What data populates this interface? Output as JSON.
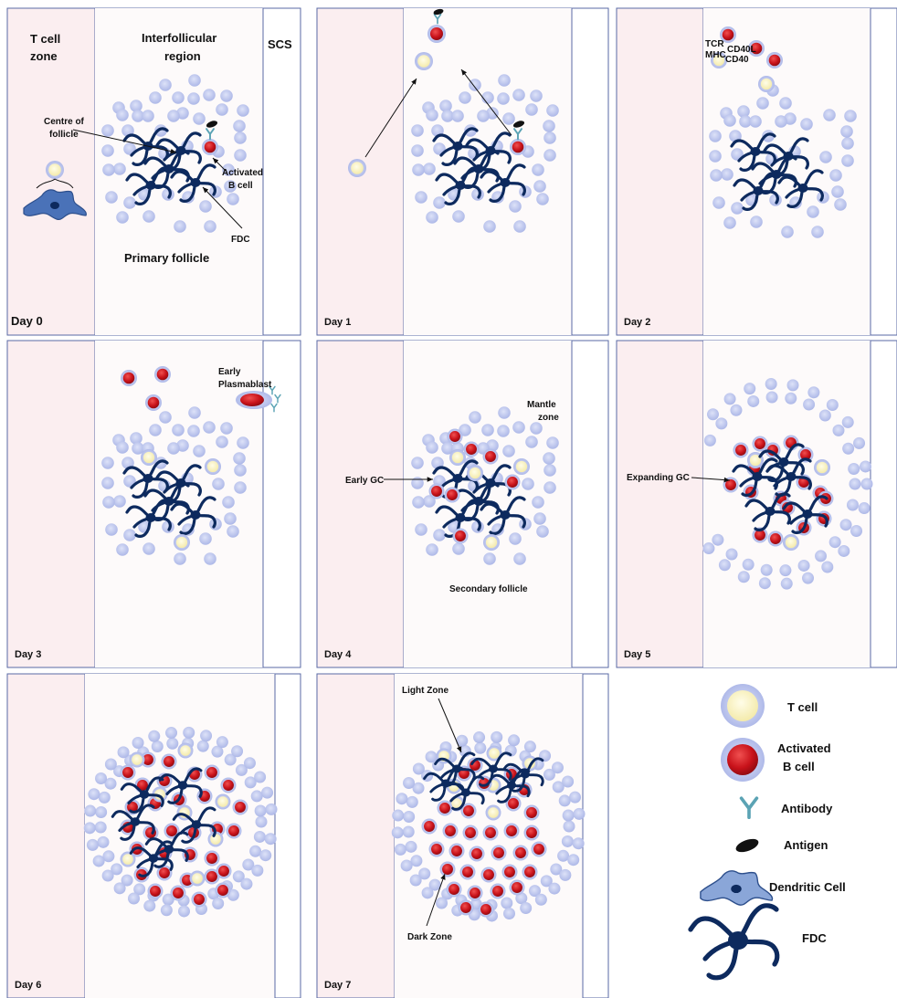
{
  "panels": [
    {
      "day": "Day 0",
      "key": "d0"
    },
    {
      "day": "Day 1",
      "key": "d1"
    },
    {
      "day": "Day 2",
      "key": "d2"
    },
    {
      "day": "Day 3",
      "key": "d3"
    },
    {
      "day": "Day 4",
      "key": "d4"
    },
    {
      "day": "Day 5",
      "key": "d5"
    },
    {
      "day": "Day 6",
      "key": "d6"
    },
    {
      "day": "Day 7",
      "key": "d7"
    }
  ],
  "labels": {
    "t_cell_zone_1": "T cell",
    "t_cell_zone_2": "zone",
    "interfollicular_1": "Interfollicular",
    "interfollicular_2": "region",
    "scs": "SCS",
    "centre_1": "Centre of",
    "centre_2": "follicle",
    "activated_1": "Activated",
    "activated_2": "B cell",
    "fdc": "FDC",
    "primary_follicle": "Primary follicle",
    "tcr": "TCR",
    "mhc": "MHC",
    "cd40l": "CD40L",
    "cd40": "CD40",
    "early_plasmablast_1": "Early",
    "early_plasmablast_2": "Plasmablast",
    "mantle_1": "Mantle",
    "mantle_2": "zone",
    "early_gc": "Early GC",
    "secondary_follicle": "Secondary follicle",
    "expanding_gc": "Expanding GC",
    "light_zone": "Light Zone",
    "dark_zone": "Dark Zone"
  },
  "legend": {
    "t_cell": "T cell",
    "activated_b_1": "Activated",
    "activated_b_2": "B cell",
    "antibody": "Antibody",
    "antigen": "Antigen",
    "dendritic_cell": "Dendritic Cell",
    "fdc": "FDC"
  },
  "colors": {
    "panel_border": "#5a6aa6",
    "t_zone_fill": "#fbeef0",
    "b_cell_naive": "#c2c9ee",
    "t_cell_core": "#fbf6c8",
    "b_cell_active": "#d0141c",
    "fdc": "#0d2a5e",
    "dendritic": "#4a72b8",
    "antibody": "#5ba3b4",
    "antigen": "#111111"
  }
}
